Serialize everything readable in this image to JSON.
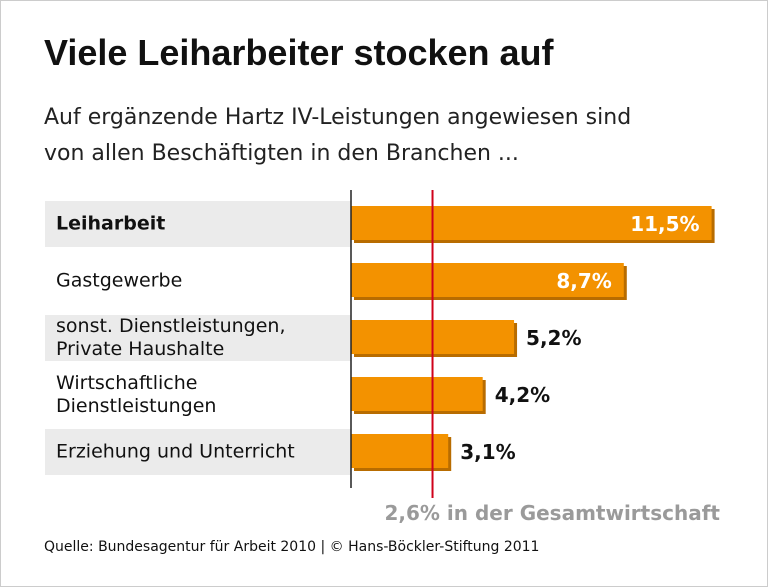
{
  "chart_data": {
    "type": "hbar",
    "title": "Viele Leiharbeiter stocken auf",
    "subtitle": "Auf ergänzende Hartz IV-Leistungen angewiesen sind\nvon allen Beschäftigten in den Branchen ...",
    "categories": [
      "Leiharbeit",
      "Gastgewerbe",
      "sonst. Dienstleistungen,\nPrivate Haushalte",
      "Wirtschaftliche\nDienstleistungen",
      "Erziehung und Unterricht"
    ],
    "values": [
      11.5,
      8.7,
      5.2,
      4.2,
      3.1
    ],
    "value_labels": [
      "11,5%",
      "8,7%",
      "5,2%",
      "4,2%",
      "3,1%"
    ],
    "color": "#f39200",
    "highlight_index": 0,
    "xlim": [
      0,
      11.8
    ],
    "reference": {
      "value": 2.6,
      "label": "2,6% in der Gesamtwirtschaft",
      "color": "#d0021b"
    },
    "source": "Quelle: Bundesagentur für Arbeit 2010 | © Hans-Böckler-Stiftung 2011"
  }
}
